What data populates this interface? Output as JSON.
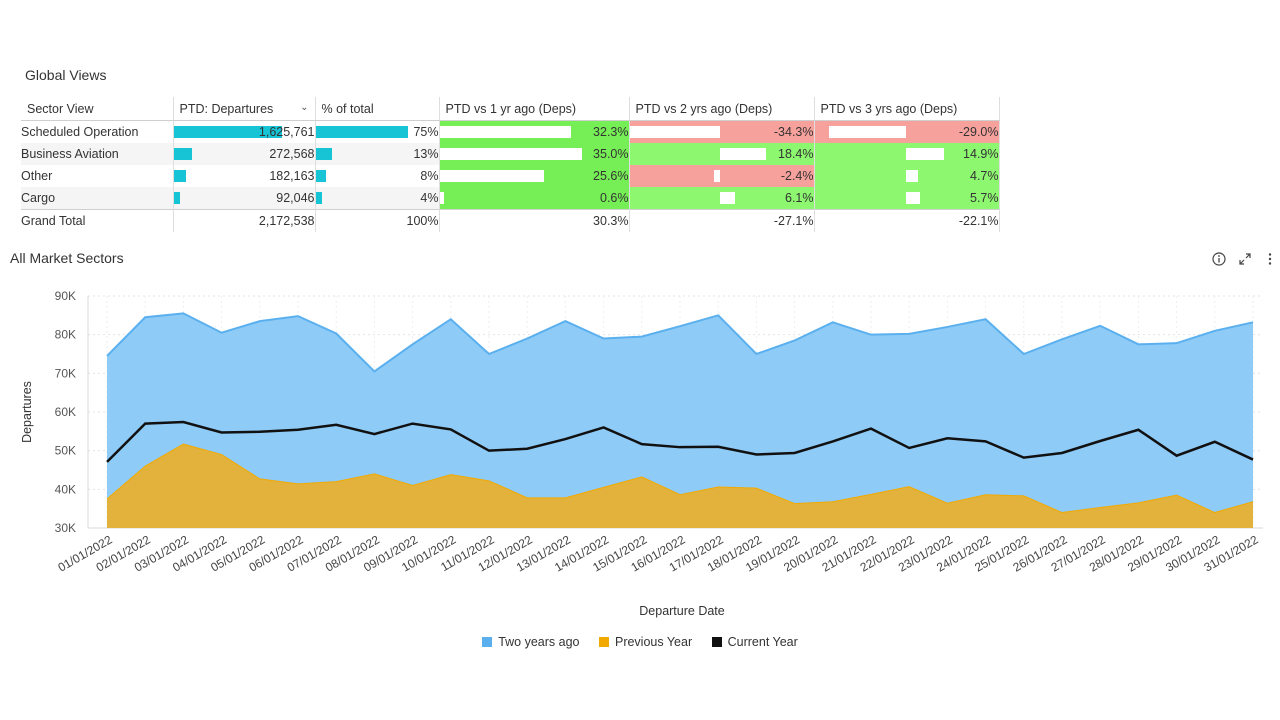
{
  "global_views": {
    "title": "Global Views",
    "columns": [
      "Sector View",
      "PTD: Departures",
      "% of total",
      "PTD vs 1 yr ago (Deps)",
      "PTD vs 2 yrs ago (Deps)",
      "PTD vs 3 yrs ago (Deps)"
    ],
    "rows": [
      {
        "sector": "Scheduled Operation",
        "departures": "1,625,761",
        "pct": "75%",
        "vs1": "32.3%",
        "vs2": "-34.3%",
        "vs3": "-29.0%"
      },
      {
        "sector": "Business Aviation",
        "departures": "272,568",
        "pct": "13%",
        "vs1": "35.0%",
        "vs2": "18.4%",
        "vs3": "14.9%"
      },
      {
        "sector": "Other",
        "departures": "182,163",
        "pct": "8%",
        "vs1": "25.6%",
        "vs2": "-2.4%",
        "vs3": "4.7%"
      },
      {
        "sector": "Cargo",
        "departures": "92,046",
        "pct": "4%",
        "vs1": "0.6%",
        "vs2": "6.1%",
        "vs3": "5.7%"
      }
    ],
    "total": {
      "sector": "Grand Total",
      "departures": "2,172,538",
      "pct": "100%",
      "vs1": "30.3%",
      "vs2": "-27.1%",
      "vs3": "-22.1%"
    }
  },
  "colors": {
    "cyan_bar": "#17c4d6",
    "positive": "#8ef770",
    "negative": "#f7a19d",
    "two_years": "#8fcbf7",
    "previous": "#e3b23c",
    "current": "#111111"
  },
  "icons": [
    "info-icon",
    "expand-icon",
    "more-vertical-icon"
  ],
  "chart_data": {
    "type": "area",
    "title": "All Market Sectors",
    "xlabel": "Departure Date",
    "ylabel": "Departures",
    "ylim": [
      30000,
      90000
    ],
    "yticks": [
      "30K",
      "40K",
      "50K",
      "60K",
      "70K",
      "80K",
      "90K"
    ],
    "grid": true,
    "legend": "bottom",
    "x": [
      "01/01/2022",
      "02/01/2022",
      "03/01/2022",
      "04/01/2022",
      "05/01/2022",
      "06/01/2022",
      "07/01/2022",
      "08/01/2022",
      "09/01/2022",
      "10/01/2022",
      "11/01/2022",
      "12/01/2022",
      "13/01/2022",
      "14/01/2022",
      "15/01/2022",
      "16/01/2022",
      "17/01/2022",
      "18/01/2022",
      "19/01/2022",
      "20/01/2022",
      "21/01/2022",
      "22/01/2022",
      "23/01/2022",
      "24/01/2022",
      "25/01/2022",
      "26/01/2022",
      "27/01/2022",
      "28/01/2022",
      "29/01/2022",
      "30/01/2022",
      "31/01/2022"
    ],
    "series": [
      {
        "name": "Two years ago",
        "style": "area",
        "values": [
          74500,
          84500,
          85500,
          80500,
          83500,
          84800,
          80300,
          70500,
          77500,
          84000,
          75000,
          79000,
          83500,
          79000,
          79500,
          82200,
          85000,
          75000,
          78500,
          83200,
          80000,
          80200,
          82000,
          84000,
          75000,
          78800,
          82300,
          77500,
          77800,
          81000,
          83200
        ]
      },
      {
        "name": "Previous Year",
        "style": "area",
        "values": [
          37500,
          46000,
          51700,
          49000,
          42700,
          41400,
          42000,
          44000,
          41000,
          43800,
          42200,
          37800,
          37800,
          40500,
          43200,
          38600,
          40600,
          40300,
          36300,
          36800,
          38700,
          40700,
          36400,
          38600,
          38300,
          34000,
          35300,
          36500,
          38500,
          34000,
          36800
        ]
      },
      {
        "name": "Current Year",
        "style": "line",
        "values": [
          47100,
          57000,
          57400,
          54700,
          54900,
          55400,
          56700,
          54300,
          57000,
          55500,
          50000,
          50500,
          53000,
          56000,
          51700,
          50900,
          51000,
          49000,
          49400,
          52400,
          55700,
          50700,
          53200,
          52400,
          48200,
          49400,
          52500,
          55400,
          48700,
          52300,
          47700
        ]
      }
    ]
  }
}
